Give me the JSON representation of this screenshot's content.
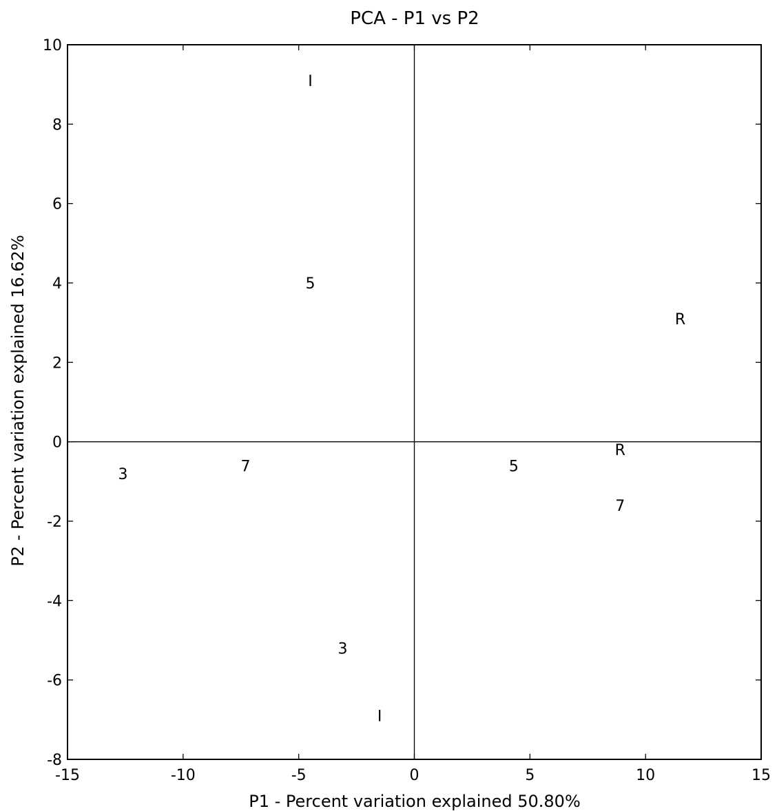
{
  "chart_data": {
    "type": "scatter",
    "title": "PCA - P1 vs P2",
    "xlabel": "P1 - Percent variation explained 50.80%",
    "ylabel": "P2 - Percent variation explained 16.62%",
    "xlim": [
      -15,
      15
    ],
    "ylim": [
      -8,
      10
    ],
    "xticks": [
      -15,
      -10,
      -5,
      0,
      5,
      10,
      15
    ],
    "yticks": [
      -8,
      -6,
      -4,
      -2,
      0,
      2,
      4,
      6,
      8,
      10
    ],
    "grid": false,
    "reference_lines": {
      "x": 0,
      "y": 0
    },
    "points": [
      {
        "label": "I",
        "x": -4.5,
        "y": 9.1
      },
      {
        "label": "5",
        "x": -4.5,
        "y": 4.0
      },
      {
        "label": "R",
        "x": 11.5,
        "y": 3.1
      },
      {
        "label": "3",
        "x": -12.6,
        "y": -0.8
      },
      {
        "label": "7",
        "x": -7.3,
        "y": -0.6
      },
      {
        "label": "5",
        "x": 4.3,
        "y": -0.6
      },
      {
        "label": "R",
        "x": 8.9,
        "y": -0.2
      },
      {
        "label": "7",
        "x": 8.9,
        "y": -1.6
      },
      {
        "label": "3",
        "x": -3.1,
        "y": -5.2
      },
      {
        "label": "I",
        "x": -1.5,
        "y": -6.9
      }
    ]
  }
}
